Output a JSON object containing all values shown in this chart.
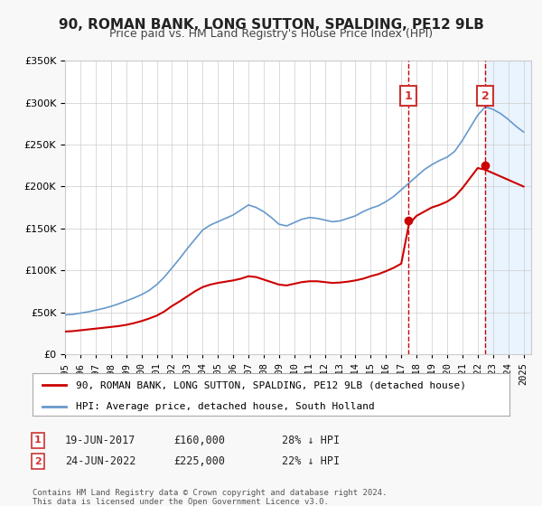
{
  "title": "90, ROMAN BANK, LONG SUTTON, SPALDING, PE12 9LB",
  "subtitle": "Price paid vs. HM Land Registry's House Price Index (HPI)",
  "legend_label_red": "90, ROMAN BANK, LONG SUTTON, SPALDING, PE12 9LB (detached house)",
  "legend_label_blue": "HPI: Average price, detached house, South Holland",
  "footnote": "Contains HM Land Registry data © Crown copyright and database right 2024.\nThis data is licensed under the Open Government Licence v3.0.",
  "event1_date": "19-JUN-2017",
  "event1_price": "£160,000",
  "event1_hpi": "28% ↓ HPI",
  "event1_year": 2017.46,
  "event1_value": 160000,
  "event2_date": "24-JUN-2022",
  "event2_price": "£225,000",
  "event2_hpi": "22% ↓ HPI",
  "event2_year": 2022.48,
  "event2_value": 225000,
  "ylim": [
    0,
    350000
  ],
  "xlim_start": 1995.0,
  "xlim_end": 2025.5,
  "bg_color": "#f8f8f8",
  "plot_bg_color": "#ffffff",
  "red_color": "#cc0000",
  "blue_color": "#6699cc",
  "grid_color": "#cccccc",
  "event_shade_color": "#ddeeff",
  "event_line_color": "#cc0000",
  "box_color": "#cc3333",
  "hpi_years": [
    1995,
    1995.5,
    1996,
    1996.5,
    1997,
    1997.5,
    1998,
    1998.5,
    1999,
    1999.5,
    2000,
    2000.5,
    2001,
    2001.5,
    2002,
    2002.5,
    2003,
    2003.5,
    2004,
    2004.5,
    2005,
    2005.5,
    2006,
    2006.5,
    2007,
    2007.5,
    2008,
    2008.5,
    2009,
    2009.5,
    2010,
    2010.5,
    2011,
    2011.5,
    2012,
    2012.5,
    2013,
    2013.5,
    2014,
    2014.5,
    2015,
    2015.5,
    2016,
    2016.5,
    2017,
    2017.5,
    2018,
    2018.5,
    2019,
    2019.5,
    2020,
    2020.5,
    2021,
    2021.5,
    2022,
    2022.5,
    2023,
    2023.5,
    2024,
    2024.5,
    2025
  ],
  "hpi_values": [
    47000,
    47500,
    49000,
    50500,
    52500,
    54500,
    57000,
    60000,
    63500,
    67000,
    71000,
    76000,
    83000,
    92000,
    103000,
    114000,
    126000,
    137000,
    148000,
    154000,
    158000,
    162000,
    166000,
    172000,
    178000,
    175000,
    170000,
    163000,
    155000,
    153000,
    157000,
    161000,
    163000,
    162000,
    160000,
    158000,
    159000,
    162000,
    165000,
    170000,
    174000,
    177000,
    182000,
    188000,
    196000,
    204000,
    212000,
    220000,
    226000,
    231000,
    235000,
    242000,
    255000,
    270000,
    285000,
    295000,
    292000,
    287000,
    280000,
    272000,
    265000
  ],
  "red_years": [
    1995,
    1995.5,
    1996,
    1996.5,
    1997,
    1997.5,
    1998,
    1998.5,
    1999,
    1999.5,
    2000,
    2000.5,
    2001,
    2001.5,
    2002,
    2002.5,
    2003,
    2003.5,
    2004,
    2004.5,
    2005,
    2005.5,
    2006,
    2006.5,
    2007,
    2007.5,
    2008,
    2008.5,
    2009,
    2009.5,
    2010,
    2010.5,
    2011,
    2011.5,
    2012,
    2012.5,
    2013,
    2013.5,
    2014,
    2014.5,
    2015,
    2015.5,
    2016,
    2016.5,
    2017,
    2017.5,
    2018,
    2018.5,
    2019,
    2019.5,
    2020,
    2020.5,
    2021,
    2021.5,
    2022,
    2022.5,
    2023,
    2023.5,
    2024,
    2024.5,
    2025
  ],
  "red_values": [
    27000,
    27500,
    28500,
    29500,
    30500,
    31500,
    32500,
    33500,
    35000,
    37000,
    39500,
    42500,
    46000,
    51000,
    57500,
    63000,
    69000,
    75000,
    80000,
    83000,
    85000,
    86500,
    88000,
    90000,
    93000,
    92000,
    89000,
    86000,
    83000,
    82000,
    84000,
    86000,
    87000,
    87000,
    86000,
    85000,
    85500,
    86500,
    88000,
    90000,
    93000,
    95500,
    99000,
    103000,
    108000,
    155000,
    165000,
    170000,
    175000,
    178000,
    182000,
    188000,
    198000,
    210000,
    222000,
    220000,
    216000,
    212000,
    208000,
    204000,
    200000
  ]
}
